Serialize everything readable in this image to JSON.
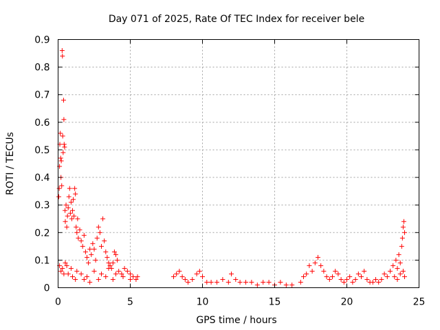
{
  "chart_data": {
    "type": "scatter",
    "title": "Day 071 of 2025, Rate Of TEC Index for receiver bele",
    "xlabel": "GPS time / hours",
    "ylabel": "ROTI / TECUs",
    "xlim": [
      0,
      25
    ],
    "ylim": [
      0,
      0.9
    ],
    "xticks": [
      "0",
      "5",
      "10",
      "15",
      "20",
      "25"
    ],
    "yticks": [
      "0",
      "0.1",
      "0.2",
      "0.3",
      "0.4",
      "0.5",
      "0.6",
      "0.7",
      "0.8",
      "0.9"
    ],
    "grid": true,
    "marker": "plus",
    "color": "#ff0000",
    "series": [
      {
        "points": [
          [
            0.05,
            0.33
          ],
          [
            0.08,
            0.36
          ],
          [
            0.1,
            0.44
          ],
          [
            0.12,
            0.52
          ],
          [
            0.15,
            0.56
          ],
          [
            0.18,
            0.47
          ],
          [
            0.2,
            0.4
          ],
          [
            0.22,
            0.46
          ],
          [
            0.25,
            0.37
          ],
          [
            0.28,
            0.86
          ],
          [
            0.3,
            0.84
          ],
          [
            0.32,
            0.55
          ],
          [
            0.35,
            0.49
          ],
          [
            0.38,
            0.68
          ],
          [
            0.4,
            0.61
          ],
          [
            0.42,
            0.52
          ],
          [
            0.45,
            0.51
          ],
          [
            0.48,
            0.28
          ],
          [
            0.5,
            0.24
          ],
          [
            0.55,
            0.3
          ],
          [
            0.6,
            0.22
          ],
          [
            0.65,
            0.26
          ],
          [
            0.7,
            0.29
          ],
          [
            0.75,
            0.33
          ],
          [
            0.8,
            0.36
          ],
          [
            0.85,
            0.27
          ],
          [
            0.9,
            0.31
          ],
          [
            0.95,
            0.25
          ],
          [
            1.0,
            0.28
          ],
          [
            1.05,
            0.32
          ],
          [
            1.1,
            0.26
          ],
          [
            1.15,
            0.36
          ],
          [
            1.2,
            0.34
          ],
          [
            1.25,
            0.22
          ],
          [
            1.3,
            0.2
          ],
          [
            1.35,
            0.25
          ],
          [
            1.4,
            0.18
          ],
          [
            1.5,
            0.21
          ],
          [
            1.6,
            0.17
          ],
          [
            1.7,
            0.15
          ],
          [
            1.8,
            0.19
          ],
          [
            1.9,
            0.13
          ],
          [
            2.0,
            0.11
          ],
          [
            2.1,
            0.09
          ],
          [
            2.2,
            0.14
          ],
          [
            2.3,
            0.12
          ],
          [
            2.4,
            0.16
          ],
          [
            2.5,
            0.14
          ],
          [
            2.6,
            0.1
          ],
          [
            2.7,
            0.18
          ],
          [
            2.8,
            0.22
          ],
          [
            2.9,
            0.2
          ],
          [
            3.0,
            0.15
          ],
          [
            3.1,
            0.25
          ],
          [
            3.2,
            0.17
          ],
          [
            3.3,
            0.13
          ],
          [
            3.4,
            0.11
          ],
          [
            3.5,
            0.09
          ],
          [
            3.6,
            0.08
          ],
          [
            3.7,
            0.07
          ],
          [
            3.8,
            0.09
          ],
          [
            3.9,
            0.13
          ],
          [
            4.0,
            0.12
          ],
          [
            4.1,
            0.1
          ],
          [
            4.2,
            0.06
          ],
          [
            4.4,
            0.05
          ],
          [
            4.6,
            0.07
          ],
          [
            4.8,
            0.06
          ],
          [
            5.0,
            0.05
          ],
          [
            5.2,
            0.04
          ],
          [
            5.4,
            0.03
          ],
          [
            5.5,
            0.04
          ],
          [
            0.1,
            0.08
          ],
          [
            0.3,
            0.07
          ],
          [
            0.5,
            0.09
          ],
          [
            0.7,
            0.05
          ],
          [
            1.0,
            0.04
          ],
          [
            1.3,
            0.06
          ],
          [
            1.6,
            0.05
          ],
          [
            2.0,
            0.04
          ],
          [
            2.5,
            0.06
          ],
          [
            3.0,
            0.05
          ],
          [
            3.5,
            0.07
          ],
          [
            4.0,
            0.05
          ],
          [
            0.2,
            0.06
          ],
          [
            0.4,
            0.05
          ],
          [
            0.6,
            0.08
          ],
          [
            0.9,
            0.07
          ],
          [
            1.2,
            0.03
          ],
          [
            1.8,
            0.03
          ],
          [
            2.2,
            0.02
          ],
          [
            2.8,
            0.03
          ],
          [
            3.3,
            0.04
          ],
          [
            3.8,
            0.03
          ],
          [
            4.5,
            0.04
          ],
          [
            5.0,
            0.03
          ],
          [
            8.0,
            0.04
          ],
          [
            8.2,
            0.05
          ],
          [
            8.4,
            0.06
          ],
          [
            8.6,
            0.04
          ],
          [
            8.8,
            0.03
          ],
          [
            9.0,
            0.02
          ],
          [
            9.3,
            0.03
          ],
          [
            9.6,
            0.05
          ],
          [
            9.8,
            0.06
          ],
          [
            10.0,
            0.04
          ],
          [
            10.3,
            0.02
          ],
          [
            10.6,
            0.02
          ],
          [
            11.0,
            0.02
          ],
          [
            11.4,
            0.03
          ],
          [
            11.8,
            0.02
          ],
          [
            12.0,
            0.05
          ],
          [
            12.3,
            0.03
          ],
          [
            12.6,
            0.02
          ],
          [
            13.0,
            0.02
          ],
          [
            13.4,
            0.02
          ],
          [
            13.8,
            0.01
          ],
          [
            14.2,
            0.02
          ],
          [
            14.6,
            0.02
          ],
          [
            15.0,
            0.01
          ],
          [
            15.4,
            0.02
          ],
          [
            15.8,
            0.01
          ],
          [
            16.2,
            0.01
          ],
          [
            16.8,
            0.02
          ],
          [
            17.0,
            0.04
          ],
          [
            17.2,
            0.05
          ],
          [
            17.4,
            0.08
          ],
          [
            17.6,
            0.06
          ],
          [
            17.8,
            0.09
          ],
          [
            18.0,
            0.11
          ],
          [
            18.2,
            0.08
          ],
          [
            18.4,
            0.06
          ],
          [
            18.6,
            0.04
          ],
          [
            18.8,
            0.03
          ],
          [
            19.0,
            0.04
          ],
          [
            19.2,
            0.06
          ],
          [
            19.4,
            0.05
          ],
          [
            19.6,
            0.03
          ],
          [
            19.8,
            0.02
          ],
          [
            20.0,
            0.03
          ],
          [
            20.2,
            0.04
          ],
          [
            20.4,
            0.02
          ],
          [
            20.6,
            0.03
          ],
          [
            20.8,
            0.05
          ],
          [
            21.0,
            0.04
          ],
          [
            21.2,
            0.06
          ],
          [
            21.4,
            0.03
          ],
          [
            21.6,
            0.02
          ],
          [
            21.8,
            0.02
          ],
          [
            22.0,
            0.03
          ],
          [
            22.2,
            0.02
          ],
          [
            22.4,
            0.03
          ],
          [
            22.6,
            0.05
          ],
          [
            22.8,
            0.04
          ],
          [
            23.0,
            0.06
          ],
          [
            23.2,
            0.08
          ],
          [
            23.4,
            0.1
          ],
          [
            23.5,
            0.07
          ],
          [
            23.6,
            0.12
          ],
          [
            23.7,
            0.09
          ],
          [
            23.8,
            0.15
          ],
          [
            23.85,
            0.18
          ],
          [
            23.9,
            0.22
          ],
          [
            23.95,
            0.24
          ],
          [
            24.0,
            0.2
          ],
          [
            23.3,
            0.04
          ],
          [
            23.5,
            0.03
          ],
          [
            23.7,
            0.05
          ],
          [
            23.9,
            0.06
          ],
          [
            24.0,
            0.04
          ]
        ]
      }
    ]
  }
}
